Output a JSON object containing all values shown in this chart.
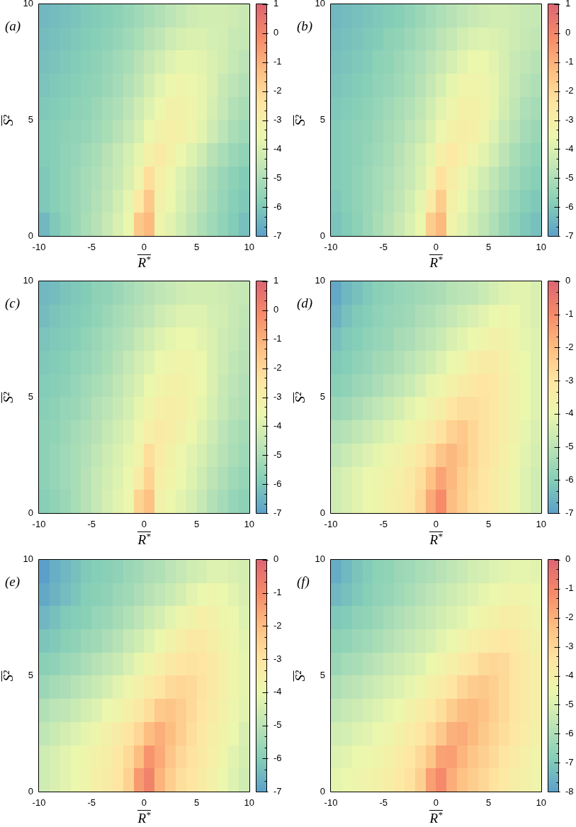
{
  "chart_data": [
    {
      "type": "heatmap",
      "title": "(a)",
      "xlabel": "R$^{*}$",
      "ylabel": "S²",
      "xlim": [
        -10,
        10
      ],
      "ylim": [
        0,
        10
      ],
      "xticks": [
        -10,
        -5,
        0,
        5,
        10
      ],
      "yticks": [
        0,
        5,
        10
      ],
      "clim": [
        -7,
        1
      ],
      "cticks": [
        1,
        {
          "value": 0.667,
          "label": null
        },
        {
          "value": 0.333,
          "label": null
        },
        0,
        {
          "value": -0.333,
          "label": null
        },
        {
          "value": -0.667,
          "label": null
        },
        -1,
        {
          "value": -1.333,
          "label": null
        },
        {
          "value": -1.667,
          "label": null
        },
        -2,
        {
          "value": -2.333,
          "label": null
        },
        {
          "value": -2.667,
          "label": null
        },
        -3,
        {
          "value": -3.333,
          "label": null
        },
        {
          "value": -3.667,
          "label": null
        },
        -4,
        {
          "value": -4.333,
          "label": null
        },
        {
          "value": -4.667,
          "label": null
        },
        -5,
        {
          "value": -5.333,
          "label": null
        },
        {
          "value": -5.667,
          "label": null
        },
        -6,
        {
          "value": -6.333,
          "label": null
        },
        {
          "value": -6.667,
          "label": null
        },
        -7
      ],
      "cells": [
        [
          -6.4,
          -6.3,
          -6.2,
          -6.1,
          -6.0,
          -5.9,
          -5.8,
          -5.7,
          -5.5,
          -5.3,
          -5.1,
          -4.9,
          -4.7,
          -4.5,
          -4.3,
          -4.2,
          -4.2,
          -4.2,
          -4.3,
          -4.4
        ],
        [
          -6.3,
          -6.2,
          -6.1,
          -6.0,
          -5.9,
          -5.8,
          -5.7,
          -5.5,
          -5.3,
          -5.1,
          -4.8,
          -4.6,
          -4.3,
          -4.1,
          -4.0,
          -4.0,
          -4.1,
          -4.2,
          -4.4,
          -4.5
        ],
        [
          -6.2,
          -6.1,
          -6.0,
          -5.9,
          -5.8,
          -5.7,
          -5.5,
          -5.3,
          -5.1,
          -4.8,
          -4.5,
          -4.2,
          -3.9,
          -3.7,
          -3.7,
          -3.8,
          -4.0,
          -4.2,
          -4.5,
          -4.7
        ],
        [
          -6.1,
          -6.0,
          -5.9,
          -5.8,
          -5.7,
          -5.6,
          -5.4,
          -5.2,
          -4.9,
          -4.6,
          -4.2,
          -3.8,
          -3.5,
          -3.4,
          -3.5,
          -3.7,
          -4.0,
          -4.4,
          -4.7,
          -4.9
        ],
        [
          -6.0,
          -5.9,
          -5.8,
          -5.7,
          -5.6,
          -5.4,
          -5.2,
          -5.0,
          -4.7,
          -4.3,
          -3.9,
          -3.5,
          -3.2,
          -3.2,
          -3.4,
          -3.7,
          -4.1,
          -4.5,
          -4.9,
          -5.1
        ],
        [
          -5.9,
          -5.8,
          -5.7,
          -5.6,
          -5.5,
          -5.3,
          -5.1,
          -4.8,
          -4.5,
          -4.1,
          -3.6,
          -3.2,
          -3.0,
          -3.1,
          -3.4,
          -3.8,
          -4.3,
          -4.7,
          -5.1,
          -5.3
        ],
        [
          -5.9,
          -5.8,
          -5.6,
          -5.5,
          -5.3,
          -5.1,
          -4.8,
          -4.5,
          -4.1,
          -3.7,
          -3.1,
          -2.7,
          -3.1,
          -3.5,
          -3.9,
          -4.3,
          -4.8,
          -5.1,
          -5.4,
          -5.6
        ],
        [
          -6.0,
          -5.8,
          -5.6,
          -5.4,
          -5.2,
          -5.0,
          -4.7,
          -4.4,
          -4.0,
          -3.4,
          -2.2,
          -3.0,
          -3.5,
          -3.9,
          -4.3,
          -4.7,
          -5.1,
          -5.4,
          -5.7,
          -5.9
        ],
        [
          -6.0,
          -5.8,
          -5.6,
          -5.4,
          -5.2,
          -4.9,
          -4.6,
          -4.2,
          -3.7,
          -2.6,
          -1.6,
          -3.2,
          -3.6,
          -4.0,
          -4.4,
          -4.8,
          -5.2,
          -5.5,
          -5.8,
          -6.0
        ],
        [
          -6.4,
          -6.0,
          -5.7,
          -5.4,
          -5.1,
          -4.8,
          -4.4,
          -4.0,
          -3.6,
          -1.6,
          -1.2,
          -3.4,
          -3.8,
          -4.2,
          -4.6,
          -5.0,
          -5.3,
          -5.6,
          -5.9,
          -6.2
        ]
      ]
    },
    {
      "type": "heatmap",
      "title": "(b)",
      "xlabel": "R$^{*}$",
      "ylabel": "S²",
      "xlim": [
        -10,
        10
      ],
      "ylim": [
        0,
        10
      ],
      "xticks": [
        -10,
        -5,
        0,
        5,
        10
      ],
      "yticks": [
        0,
        5,
        10
      ],
      "clim": [
        -7,
        1
      ],
      "cticks": [
        1,
        {
          "value": 0.667,
          "label": null
        },
        {
          "value": 0.333,
          "label": null
        },
        0,
        {
          "value": -0.333,
          "label": null
        },
        {
          "value": -0.667,
          "label": null
        },
        -1,
        {
          "value": -1.333,
          "label": null
        },
        {
          "value": -1.667,
          "label": null
        },
        -2,
        {
          "value": -2.333,
          "label": null
        },
        {
          "value": -2.667,
          "label": null
        },
        -3,
        {
          "value": -3.333,
          "label": null
        },
        {
          "value": -3.667,
          "label": null
        },
        -4,
        {
          "value": -4.333,
          "label": null
        },
        {
          "value": -4.667,
          "label": null
        },
        -5,
        {
          "value": -5.333,
          "label": null
        },
        {
          "value": -5.667,
          "label": null
        },
        -6,
        {
          "value": -6.333,
          "label": null
        },
        {
          "value": -6.667,
          "label": null
        },
        -7
      ],
      "cells": [
        [
          -6.4,
          -6.3,
          -6.2,
          -6.1,
          -6.0,
          -5.9,
          -5.8,
          -5.6,
          -5.4,
          -5.2,
          -5.0,
          -4.8,
          -4.6,
          -4.4,
          -4.3,
          -4.2,
          -4.2,
          -4.3,
          -4.4,
          -4.5
        ],
        [
          -6.3,
          -6.2,
          -6.1,
          -6.0,
          -5.9,
          -5.7,
          -5.6,
          -5.4,
          -5.2,
          -5.0,
          -4.7,
          -4.5,
          -4.2,
          -4.0,
          -3.9,
          -4.0,
          -4.1,
          -4.3,
          -4.5,
          -4.6
        ],
        [
          -6.2,
          -6.1,
          -6.0,
          -5.9,
          -5.7,
          -5.6,
          -5.4,
          -5.2,
          -5.0,
          -4.7,
          -4.4,
          -4.1,
          -3.8,
          -3.6,
          -3.6,
          -3.8,
          -4.1,
          -4.4,
          -4.6,
          -4.8
        ],
        [
          -6.1,
          -6.0,
          -5.9,
          -5.8,
          -5.6,
          -5.5,
          -5.3,
          -5.1,
          -4.8,
          -4.5,
          -4.1,
          -3.7,
          -3.4,
          -3.3,
          -3.4,
          -3.7,
          -4.1,
          -4.5,
          -4.8,
          -5.0
        ],
        [
          -6.0,
          -5.9,
          -5.8,
          -5.7,
          -5.5,
          -5.3,
          -5.1,
          -4.9,
          -4.6,
          -4.2,
          -3.8,
          -3.4,
          -3.1,
          -3.1,
          -3.3,
          -3.7,
          -4.2,
          -4.6,
          -5.0,
          -5.2
        ],
        [
          -5.9,
          -5.8,
          -5.7,
          -5.6,
          -5.4,
          -5.2,
          -5.0,
          -4.7,
          -4.4,
          -4.0,
          -3.5,
          -3.1,
          -2.9,
          -3.0,
          -3.4,
          -3.9,
          -4.4,
          -4.8,
          -5.2,
          -5.4
        ],
        [
          -5.9,
          -5.8,
          -5.7,
          -5.5,
          -5.3,
          -5.1,
          -4.8,
          -4.5,
          -4.1,
          -3.7,
          -3.0,
          -2.6,
          -3.0,
          -3.4,
          -3.8,
          -4.2,
          -4.7,
          -5.1,
          -5.4,
          -5.6
        ],
        [
          -5.9,
          -5.8,
          -5.6,
          -5.4,
          -5.2,
          -5.0,
          -4.7,
          -4.4,
          -4.0,
          -3.3,
          -2.3,
          -2.9,
          -3.4,
          -3.8,
          -4.2,
          -4.6,
          -5.0,
          -5.3,
          -5.6,
          -5.8
        ],
        [
          -6.0,
          -5.8,
          -5.6,
          -5.4,
          -5.2,
          -4.9,
          -4.6,
          -4.2,
          -3.7,
          -2.7,
          -1.7,
          -3.1,
          -3.6,
          -4.0,
          -4.4,
          -4.8,
          -5.2,
          -5.5,
          -5.8,
          -6.0
        ],
        [
          -6.1,
          -5.9,
          -5.7,
          -5.4,
          -5.1,
          -4.8,
          -4.4,
          -4.0,
          -3.6,
          -1.7,
          -1.2,
          -3.3,
          -3.8,
          -4.2,
          -4.6,
          -5.0,
          -5.4,
          -5.7,
          -6.0,
          -6.2
        ]
      ]
    },
    {
      "type": "heatmap",
      "title": "(c)",
      "xlabel": "R$^{*}$",
      "ylabel": "S²",
      "xlim": [
        -10,
        10
      ],
      "ylim": [
        0,
        10
      ],
      "xticks": [
        -10,
        -5,
        0,
        5,
        10
      ],
      "yticks": [
        0,
        5,
        10
      ],
      "clim": [
        -7,
        1
      ],
      "cticks": [
        1,
        {
          "value": 0.667,
          "label": null
        },
        {
          "value": 0.333,
          "label": null
        },
        0,
        {
          "value": -0.333,
          "label": null
        },
        {
          "value": -0.667,
          "label": null
        },
        -1,
        {
          "value": -1.333,
          "label": null
        },
        {
          "value": -1.667,
          "label": null
        },
        -2,
        {
          "value": -2.333,
          "label": null
        },
        {
          "value": -2.667,
          "label": null
        },
        -3,
        {
          "value": -3.333,
          "label": null
        },
        {
          "value": -3.667,
          "label": null
        },
        -4,
        {
          "value": -4.333,
          "label": null
        },
        {
          "value": -4.667,
          "label": null
        },
        -5,
        {
          "value": -5.333,
          "label": null
        },
        {
          "value": -5.667,
          "label": null
        },
        -6,
        {
          "value": -6.333,
          "label": null
        },
        {
          "value": -6.667,
          "label": null
        },
        -7
      ],
      "cells": [
        [
          -6.4,
          -6.3,
          -6.1,
          -6.0,
          -5.9,
          -5.7,
          -5.6,
          -5.4,
          -5.2,
          -5.0,
          -4.8,
          -4.6,
          -4.5,
          -4.3,
          -4.2,
          -4.2,
          -4.2,
          -4.3,
          -4.4,
          -4.5
        ],
        [
          -6.3,
          -6.1,
          -6.0,
          -5.9,
          -5.8,
          -5.6,
          -5.4,
          -5.2,
          -5.0,
          -4.8,
          -4.6,
          -4.3,
          -4.1,
          -3.9,
          -3.9,
          -3.9,
          -4.1,
          -4.2,
          -4.4,
          -4.6
        ],
        [
          -6.1,
          -6.0,
          -5.9,
          -5.8,
          -5.6,
          -5.4,
          -5.2,
          -5.0,
          -4.8,
          -4.5,
          -4.2,
          -3.9,
          -3.7,
          -3.6,
          -3.6,
          -3.8,
          -4.0,
          -4.3,
          -4.5,
          -4.7
        ],
        [
          -6.0,
          -5.9,
          -5.8,
          -5.6,
          -5.5,
          -5.3,
          -5.1,
          -4.8,
          -4.5,
          -4.2,
          -3.9,
          -3.6,
          -3.4,
          -3.3,
          -3.4,
          -3.6,
          -4.0,
          -4.3,
          -4.6,
          -4.8
        ],
        [
          -5.9,
          -5.8,
          -5.7,
          -5.5,
          -5.3,
          -5.1,
          -4.9,
          -4.6,
          -4.3,
          -4.0,
          -3.6,
          -3.3,
          -3.1,
          -3.1,
          -3.3,
          -3.6,
          -4.0,
          -4.4,
          -4.7,
          -4.9
        ],
        [
          -5.8,
          -5.7,
          -5.5,
          -5.4,
          -5.2,
          -4.9,
          -4.7,
          -4.4,
          -4.1,
          -3.7,
          -3.3,
          -3.0,
          -2.9,
          -3.0,
          -3.3,
          -3.7,
          -4.1,
          -4.5,
          -4.8,
          -5.0
        ],
        [
          -5.7,
          -5.6,
          -5.4,
          -5.2,
          -5.0,
          -4.8,
          -4.5,
          -4.2,
          -3.9,
          -3.5,
          -3.0,
          -2.7,
          -2.9,
          -3.2,
          -3.5,
          -3.9,
          -4.3,
          -4.7,
          -5.0,
          -5.2
        ],
        [
          -5.7,
          -5.5,
          -5.3,
          -5.1,
          -4.9,
          -4.6,
          -4.3,
          -4.0,
          -3.7,
          -3.3,
          -2.2,
          -2.8,
          -3.2,
          -3.5,
          -3.8,
          -4.1,
          -4.5,
          -4.8,
          -5.1,
          -5.3
        ],
        [
          -5.7,
          -5.5,
          -5.3,
          -5.1,
          -4.8,
          -4.5,
          -4.2,
          -3.9,
          -3.6,
          -2.8,
          -1.9,
          -3.0,
          -3.3,
          -3.6,
          -3.9,
          -4.3,
          -4.7,
          -5.0,
          -5.3,
          -5.5
        ],
        [
          -5.8,
          -5.6,
          -5.4,
          -5.1,
          -4.8,
          -4.5,
          -4.1,
          -3.8,
          -3.5,
          -1.9,
          -1.4,
          -3.2,
          -3.5,
          -3.8,
          -4.1,
          -4.5,
          -4.9,
          -5.2,
          -5.5,
          -5.7
        ]
      ]
    },
    {
      "type": "heatmap",
      "title": "(d)",
      "xlabel": "R$^{*}$",
      "ylabel": "S²",
      "xlim": [
        -10,
        10
      ],
      "ylim": [
        0,
        10
      ],
      "xticks": [
        -10,
        -5,
        0,
        5,
        10
      ],
      "yticks": [
        0,
        5,
        10
      ],
      "clim": [
        -7,
        0
      ],
      "cticks": [
        0,
        {
          "value": -0.333,
          "label": null
        },
        {
          "value": -0.667,
          "label": null
        },
        -1,
        {
          "value": -1.333,
          "label": null
        },
        {
          "value": -1.667,
          "label": null
        },
        -2,
        {
          "value": -2.333,
          "label": null
        },
        {
          "value": -2.667,
          "label": null
        },
        -3,
        {
          "value": -3.333,
          "label": null
        },
        {
          "value": -3.667,
          "label": null
        },
        -4,
        {
          "value": -4.333,
          "label": null
        },
        {
          "value": -4.667,
          "label": null
        },
        -5,
        {
          "value": -5.333,
          "label": null
        },
        {
          "value": -5.667,
          "label": null
        },
        -6,
        {
          "value": -6.333,
          "label": null
        },
        {
          "value": -6.667,
          "label": null
        },
        -7
      ],
      "cells": [
        [
          -6.8,
          -6.5,
          -6.3,
          -6.1,
          -5.9,
          -5.8,
          -5.7,
          -5.6,
          -5.5,
          -5.4,
          -5.3,
          -5.1,
          -5.0,
          -4.9,
          -4.7,
          -4.5,
          -4.3,
          -4.2,
          -4.2,
          -4.4
        ],
        [
          -6.6,
          -6.3,
          -6.1,
          -6.0,
          -5.8,
          -5.7,
          -5.6,
          -5.5,
          -5.3,
          -5.2,
          -5.0,
          -4.8,
          -4.6,
          -4.4,
          -4.2,
          -4.0,
          -3.9,
          -4.0,
          -4.2,
          -4.4
        ],
        [
          -6.3,
          -6.1,
          -6.0,
          -5.8,
          -5.7,
          -5.6,
          -5.4,
          -5.3,
          -5.1,
          -4.9,
          -4.7,
          -4.4,
          -4.2,
          -4.0,
          -3.8,
          -3.6,
          -3.7,
          -3.9,
          -4.1,
          -4.3
        ],
        [
          -6.1,
          -6.0,
          -5.8,
          -5.7,
          -5.5,
          -5.4,
          -5.2,
          -5.0,
          -4.8,
          -4.6,
          -4.3,
          -4.0,
          -3.8,
          -3.5,
          -3.3,
          -3.3,
          -3.5,
          -3.8,
          -4.0,
          -4.3
        ],
        [
          -5.9,
          -5.8,
          -5.6,
          -5.5,
          -5.3,
          -5.1,
          -4.9,
          -4.7,
          -4.4,
          -4.1,
          -3.9,
          -3.6,
          -3.3,
          -3.1,
          -3.0,
          -3.1,
          -3.4,
          -3.7,
          -4.0,
          -4.3
        ],
        [
          -5.6,
          -5.5,
          -5.3,
          -5.1,
          -4.9,
          -4.7,
          -4.5,
          -4.2,
          -4.0,
          -3.7,
          -3.4,
          -3.0,
          -2.8,
          -2.8,
          -2.9,
          -3.1,
          -3.4,
          -3.7,
          -4.0,
          -4.3
        ],
        [
          -5.2,
          -5.1,
          -4.9,
          -4.7,
          -4.5,
          -4.3,
          -4.1,
          -3.8,
          -3.6,
          -3.3,
          -2.9,
          -2.5,
          -2.3,
          -2.6,
          -2.9,
          -3.1,
          -3.4,
          -3.7,
          -4.1,
          -4.4
        ],
        [
          -4.9,
          -4.7,
          -4.5,
          -4.3,
          -4.1,
          -3.9,
          -3.7,
          -3.4,
          -3.1,
          -2.7,
          -2.2,
          -1.9,
          -2.2,
          -2.6,
          -2.9,
          -3.2,
          -3.5,
          -3.8,
          -4.2,
          -4.5
        ],
        [
          -4.6,
          -4.4,
          -4.2,
          -4.0,
          -3.9,
          -3.7,
          -3.5,
          -3.2,
          -2.8,
          -2.1,
          -1.5,
          -1.9,
          -2.4,
          -2.7,
          -3.0,
          -3.3,
          -3.6,
          -3.9,
          -4.3,
          -4.6
        ],
        [
          -4.6,
          -4.4,
          -4.2,
          -4.0,
          -3.8,
          -3.6,
          -3.4,
          -3.1,
          -2.6,
          -1.6,
          -1.0,
          -2.0,
          -2.4,
          -2.8,
          -3.0,
          -3.3,
          -3.6,
          -3.9,
          -4.3,
          -4.6
        ]
      ]
    },
    {
      "type": "heatmap",
      "title": "(e)",
      "xlabel": "R$^{*}$",
      "ylabel": "S²",
      "xlim": [
        -10,
        10
      ],
      "ylim": [
        0,
        10
      ],
      "xticks": [
        -10,
        -5,
        0,
        5,
        10
      ],
      "yticks": [
        0,
        5,
        10
      ],
      "clim": [
        -7,
        0
      ],
      "cticks": [
        0,
        {
          "value": -0.333,
          "label": null
        },
        {
          "value": -0.667,
          "label": null
        },
        -1,
        {
          "value": -1.333,
          "label": null
        },
        {
          "value": -1.667,
          "label": null
        },
        -2,
        {
          "value": -2.333,
          "label": null
        },
        {
          "value": -2.667,
          "label": null
        },
        -3,
        {
          "value": -3.333,
          "label": null
        },
        {
          "value": -3.667,
          "label": null
        },
        -4,
        {
          "value": -4.333,
          "label": null
        },
        {
          "value": -4.667,
          "label": null
        },
        -5,
        {
          "value": -5.333,
          "label": null
        },
        {
          "value": -5.667,
          "label": null
        },
        -6,
        {
          "value": -6.333,
          "label": null
        },
        {
          "value": -6.667,
          "label": null
        },
        -7
      ],
      "cells": [
        [
          -7.0,
          -6.7,
          -6.5,
          -6.3,
          -6.1,
          -6.0,
          -5.9,
          -5.8,
          -5.6,
          -5.5,
          -5.3,
          -5.2,
          -5.0,
          -4.8,
          -4.6,
          -4.5,
          -4.3,
          -4.3,
          -4.4,
          -4.5
        ],
        [
          -6.8,
          -6.6,
          -6.4,
          -6.2,
          -6.0,
          -5.9,
          -5.8,
          -5.6,
          -5.5,
          -5.3,
          -5.1,
          -4.9,
          -4.7,
          -4.5,
          -4.2,
          -4.0,
          -3.9,
          -4.0,
          -4.2,
          -4.4
        ],
        [
          -6.5,
          -6.3,
          -6.1,
          -6.0,
          -5.9,
          -5.7,
          -5.6,
          -5.4,
          -5.2,
          -5.0,
          -4.7,
          -4.5,
          -4.2,
          -3.9,
          -3.7,
          -3.5,
          -3.6,
          -3.8,
          -4.0,
          -4.3
        ],
        [
          -6.2,
          -6.1,
          -5.9,
          -5.8,
          -5.6,
          -5.5,
          -5.3,
          -5.1,
          -4.8,
          -4.6,
          -4.3,
          -4.0,
          -3.7,
          -3.4,
          -3.2,
          -3.2,
          -3.4,
          -3.7,
          -3.9,
          -4.2
        ],
        [
          -5.9,
          -5.8,
          -5.6,
          -5.5,
          -5.3,
          -5.1,
          -4.9,
          -4.7,
          -4.4,
          -4.1,
          -3.8,
          -3.5,
          -3.2,
          -3.0,
          -2.9,
          -3.0,
          -3.2,
          -3.5,
          -3.8,
          -4.1
        ],
        [
          -5.6,
          -5.4,
          -5.3,
          -5.1,
          -4.9,
          -4.7,
          -4.5,
          -4.2,
          -3.9,
          -3.6,
          -3.3,
          -3.0,
          -2.7,
          -2.6,
          -2.7,
          -2.9,
          -3.2,
          -3.5,
          -3.8,
          -4.1
        ],
        [
          -5.2,
          -5.0,
          -4.9,
          -4.7,
          -4.5,
          -4.3,
          -4.0,
          -3.8,
          -3.5,
          -3.2,
          -2.8,
          -2.3,
          -2.2,
          -2.4,
          -2.7,
          -3.0,
          -3.3,
          -3.6,
          -3.9,
          -4.2
        ],
        [
          -4.9,
          -4.7,
          -4.5,
          -4.3,
          -4.1,
          -3.9,
          -3.6,
          -3.3,
          -3.0,
          -2.6,
          -2.0,
          -1.7,
          -2.0,
          -2.4,
          -2.8,
          -3.1,
          -3.4,
          -3.7,
          -4.0,
          -4.4
        ],
        [
          -4.6,
          -4.4,
          -4.2,
          -4.0,
          -3.8,
          -3.6,
          -3.4,
          -3.1,
          -2.7,
          -2.0,
          -1.2,
          -1.6,
          -2.2,
          -2.6,
          -2.9,
          -3.2,
          -3.5,
          -3.8,
          -4.2,
          -4.5
        ],
        [
          -4.6,
          -4.4,
          -4.2,
          -4.0,
          -3.8,
          -3.5,
          -3.3,
          -3.0,
          -2.5,
          -1.3,
          -0.8,
          -1.8,
          -2.4,
          -2.8,
          -3.0,
          -3.3,
          -3.6,
          -4.0,
          -4.3,
          -4.6
        ]
      ]
    },
    {
      "type": "heatmap",
      "title": "(f)",
      "xlabel": "R$^{*}$",
      "ylabel": "S²",
      "xlim": [
        -10,
        10
      ],
      "ylim": [
        0,
        10
      ],
      "xticks": [
        -10,
        -5,
        0,
        5,
        10
      ],
      "yticks": [
        0,
        5,
        10
      ],
      "clim": [
        -8,
        0
      ],
      "cticks": [
        0,
        {
          "value": -0.333,
          "label": null
        },
        {
          "value": -0.667,
          "label": null
        },
        -1,
        {
          "value": -1.333,
          "label": null
        },
        {
          "value": -1.667,
          "label": null
        },
        -2,
        {
          "value": -2.333,
          "label": null
        },
        {
          "value": -2.667,
          "label": null
        },
        -3,
        {
          "value": -3.333,
          "label": null
        },
        {
          "value": -3.667,
          "label": null
        },
        -4,
        {
          "value": -4.333,
          "label": null
        },
        {
          "value": -4.667,
          "label": null
        },
        -5,
        {
          "value": -5.333,
          "label": null
        },
        {
          "value": -5.667,
          "label": null
        },
        -6,
        {
          "value": -6.333,
          "label": null
        },
        {
          "value": -6.667,
          "label": null
        },
        -7,
        {
          "value": -7.333,
          "label": null
        },
        {
          "value": -7.667,
          "label": null
        },
        -8
      ],
      "cells": [
        [
          -7.7,
          -7.4,
          -7.1,
          -6.9,
          -6.7,
          -6.6,
          -6.4,
          -6.3,
          -6.1,
          -6.0,
          -5.8,
          -5.6,
          -5.4,
          -5.2,
          -5.1,
          -4.9,
          -4.8,
          -4.7,
          -4.7,
          -4.8
        ],
        [
          -7.4,
          -7.2,
          -7.0,
          -6.8,
          -6.6,
          -6.5,
          -6.3,
          -6.1,
          -5.9,
          -5.7,
          -5.5,
          -5.3,
          -5.1,
          -4.9,
          -4.7,
          -4.5,
          -4.4,
          -4.3,
          -4.4,
          -4.6
        ],
        [
          -7.0,
          -6.9,
          -6.7,
          -6.6,
          -6.4,
          -6.2,
          -6.0,
          -5.8,
          -5.6,
          -5.4,
          -5.2,
          -5.0,
          -4.8,
          -4.5,
          -4.3,
          -4.1,
          -3.9,
          -3.9,
          -4.1,
          -4.4
        ],
        [
          -6.7,
          -6.6,
          -6.4,
          -6.3,
          -6.1,
          -5.9,
          -5.7,
          -5.5,
          -5.3,
          -5.1,
          -4.8,
          -4.6,
          -4.3,
          -4.0,
          -3.8,
          -3.6,
          -3.5,
          -3.6,
          -3.9,
          -4.2
        ],
        [
          -6.4,
          -6.2,
          -6.1,
          -5.9,
          -5.7,
          -5.5,
          -5.3,
          -5.1,
          -4.9,
          -4.6,
          -4.3,
          -4.0,
          -3.7,
          -3.4,
          -3.1,
          -3.0,
          -3.1,
          -3.4,
          -3.7,
          -4.0
        ],
        [
          -6.0,
          -5.8,
          -5.7,
          -5.5,
          -5.3,
          -5.1,
          -4.9,
          -4.7,
          -4.4,
          -4.1,
          -3.8,
          -3.4,
          -3.0,
          -2.7,
          -2.6,
          -2.8,
          -3.1,
          -3.4,
          -3.7,
          -4.0
        ],
        [
          -5.6,
          -5.4,
          -5.3,
          -5.1,
          -4.9,
          -4.7,
          -4.5,
          -4.2,
          -3.9,
          -3.6,
          -3.2,
          -2.7,
          -2.3,
          -2.2,
          -2.4,
          -2.8,
          -3.1,
          -3.4,
          -3.7,
          -4.0
        ],
        [
          -5.2,
          -5.1,
          -4.9,
          -4.8,
          -4.6,
          -4.4,
          -4.1,
          -3.8,
          -3.5,
          -3.1,
          -2.6,
          -2.0,
          -1.9,
          -2.2,
          -2.6,
          -2.9,
          -3.2,
          -3.5,
          -3.8,
          -4.1
        ],
        [
          -4.9,
          -4.8,
          -4.6,
          -4.5,
          -4.3,
          -4.1,
          -3.8,
          -3.5,
          -3.1,
          -2.5,
          -1.7,
          -1.6,
          -2.1,
          -2.5,
          -2.8,
          -3.1,
          -3.4,
          -3.7,
          -4.0,
          -4.3
        ],
        [
          -4.7,
          -4.6,
          -4.4,
          -4.3,
          -4.1,
          -3.9,
          -3.6,
          -3.3,
          -2.8,
          -1.6,
          -1.1,
          -1.9,
          -2.4,
          -2.7,
          -3.0,
          -3.3,
          -3.6,
          -3.9,
          -4.1,
          -4.4
        ]
      ]
    }
  ]
}
